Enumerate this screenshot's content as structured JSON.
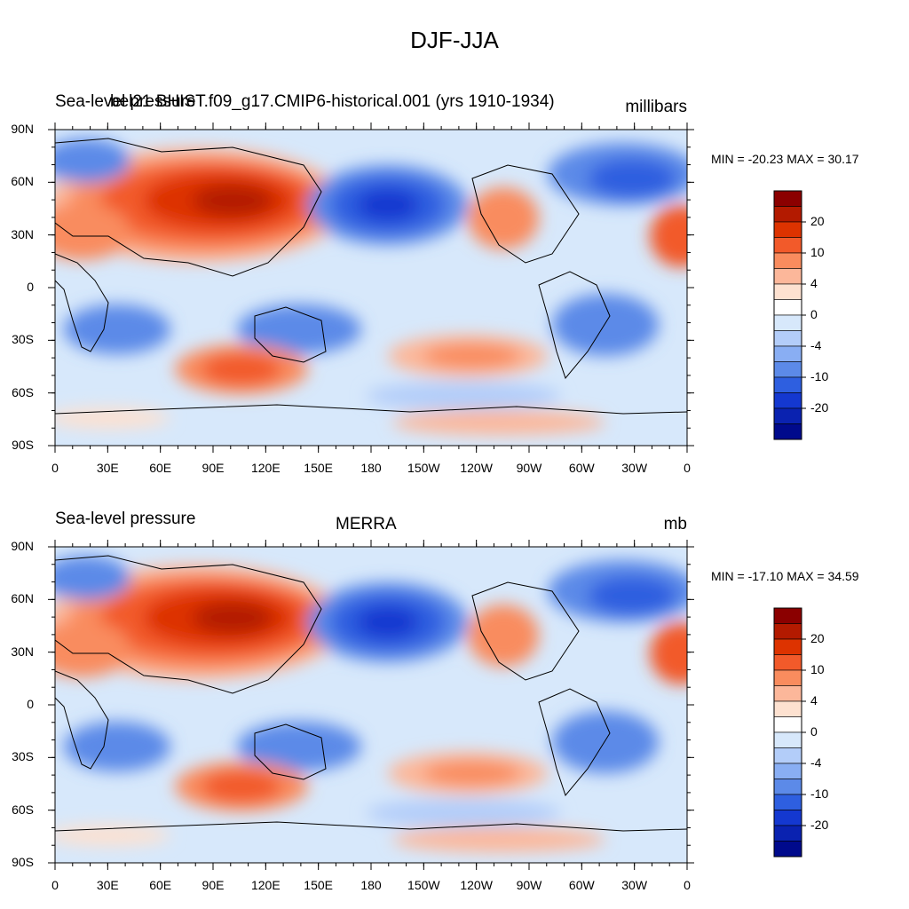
{
  "figure": {
    "title": "DJF-JJA",
    "panels": [
      {
        "left_text": "Sea-level pressure",
        "center_text": "bel21 BHIST.f09_g17.CMIP6-historical.001 (yrs 1910-1934)",
        "right_text": "millibars",
        "min_max_text": "MIN = -20.23 MAX =  30.17"
      },
      {
        "left_text": "Sea-level pressure",
        "center_text": "MERRA",
        "right_text": "mb",
        "min_max_text": "MIN = -17.10 MAX =  34.59"
      }
    ],
    "lon_ticks": [
      "0",
      "30E",
      "60E",
      "90E",
      "120E",
      "150E",
      "180",
      "150W",
      "120W",
      "90W",
      "60W",
      "30W",
      "0"
    ],
    "lat_ticks": [
      "90N",
      "60N",
      "30N",
      "0",
      "30S",
      "60S",
      "90S"
    ],
    "colorbar": {
      "labels": [
        "20",
        "10",
        "4",
        "0",
        "-4",
        "-10",
        "-20"
      ],
      "colors": [
        "#8b0000",
        "#b31a00",
        "#dd3300",
        "#f25a2a",
        "#f98c5e",
        "#fcb79a",
        "#fde1d0",
        "#ffffff",
        "#d7e8fb",
        "#b3cdf9",
        "#89aef3",
        "#5c8ae8",
        "#2e5fe0",
        "#1438d0",
        "#0a22b0",
        "#000a8c"
      ]
    }
  }
}
